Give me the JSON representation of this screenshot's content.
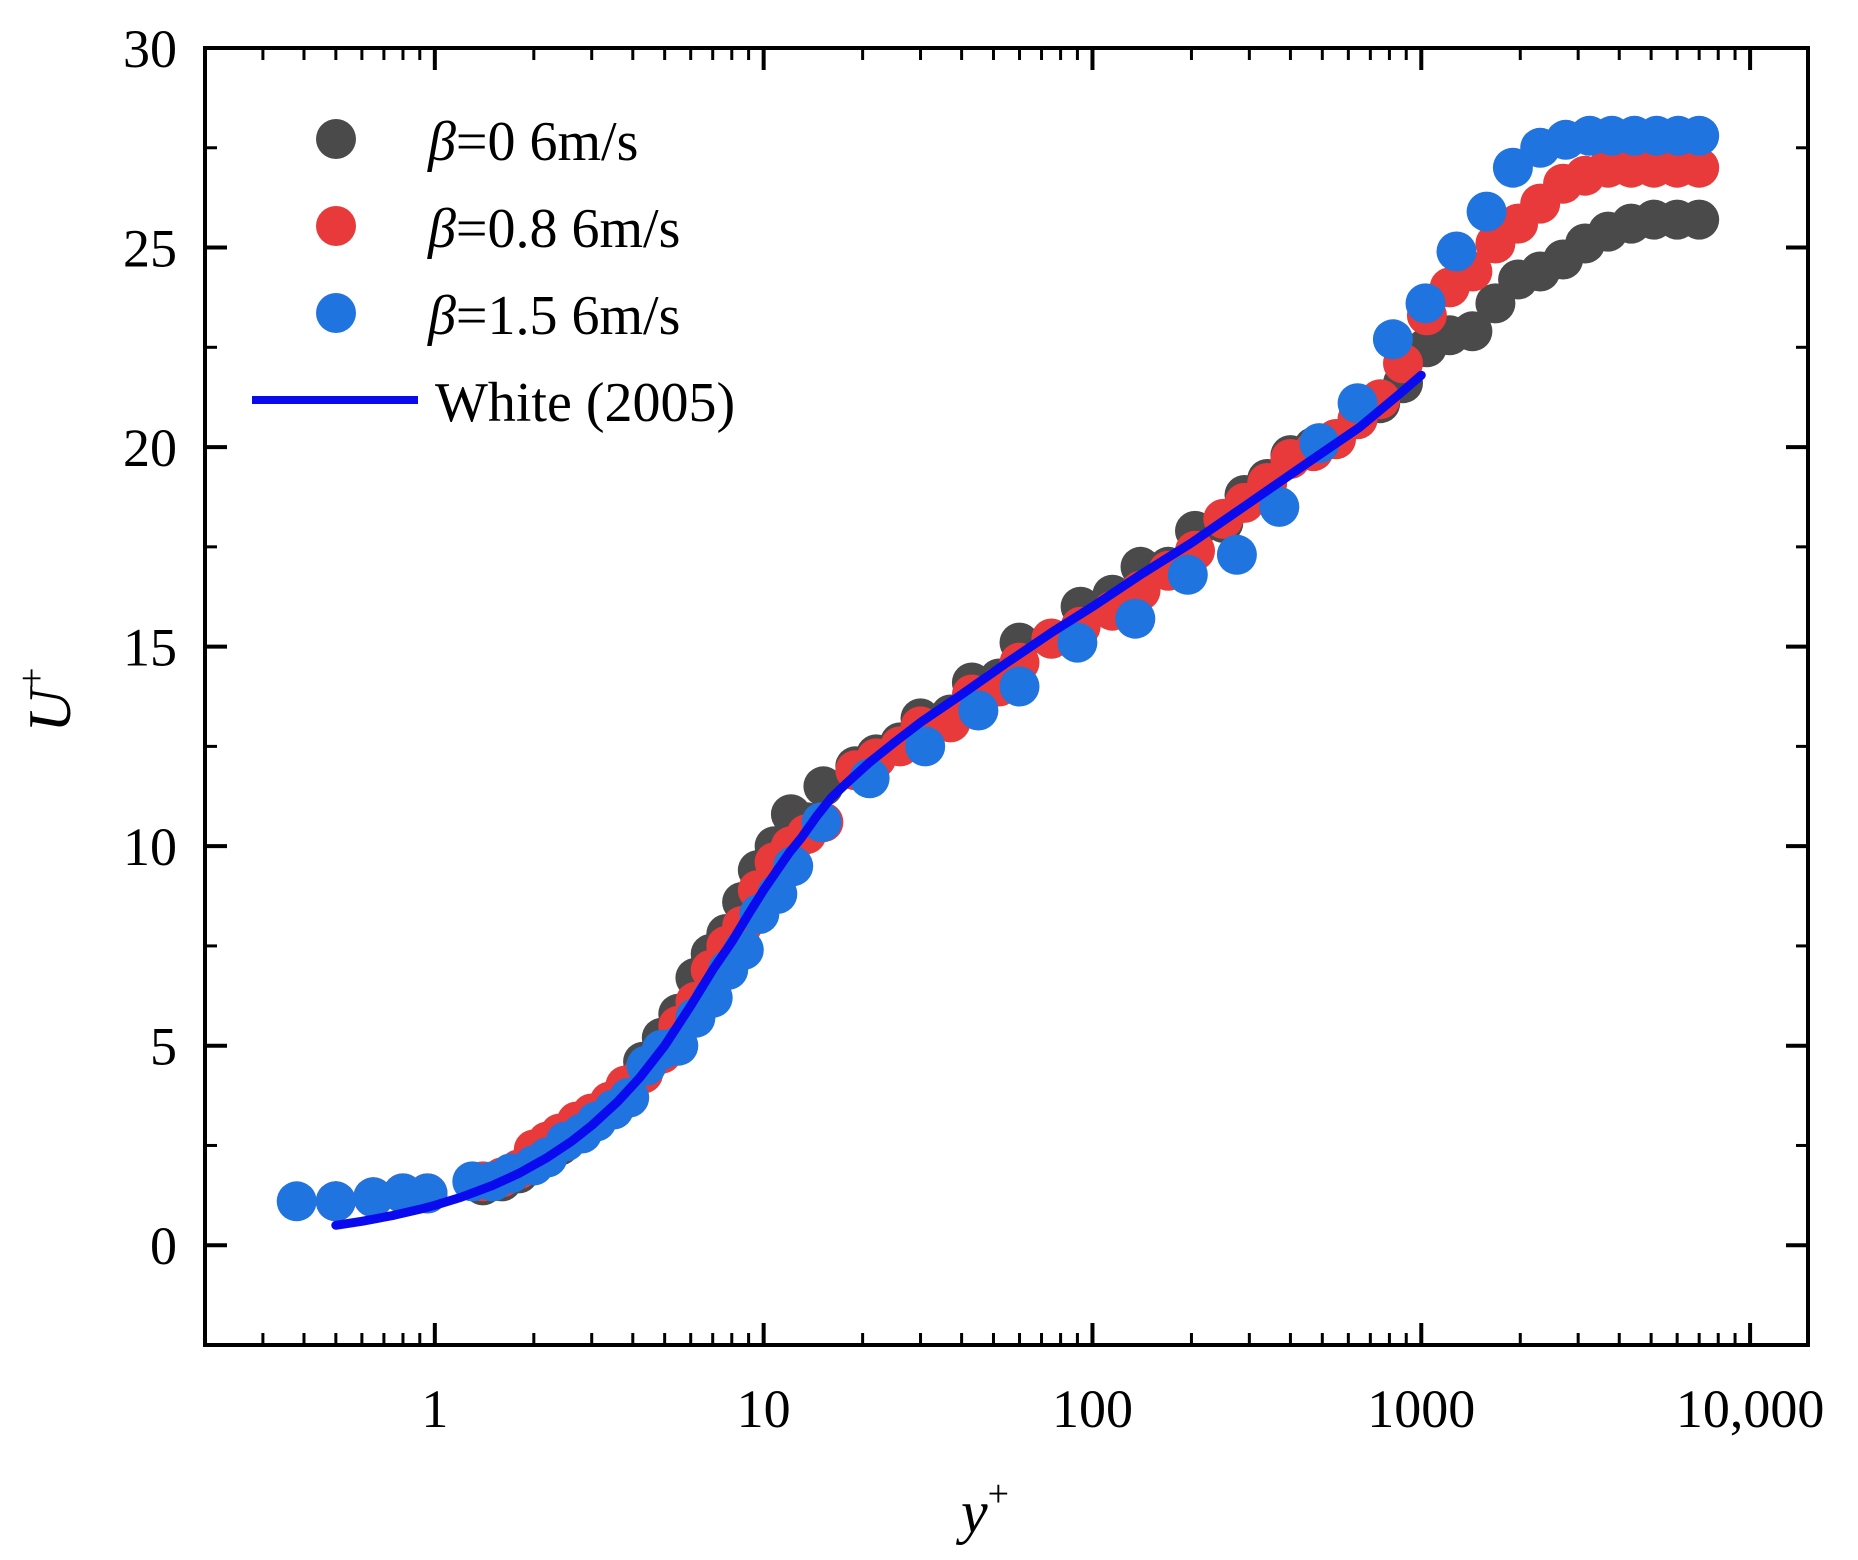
{
  "chart_data": {
    "type": "scatter",
    "xscale": "log",
    "xlim": [
      0.2,
      15000
    ],
    "ylim": [
      -2.5,
      30
    ],
    "xticks": [
      {
        "value": 1,
        "label": "1"
      },
      {
        "value": 10,
        "label": "10"
      },
      {
        "value": 100,
        "label": "100"
      },
      {
        "value": 1000,
        "label": "1000"
      },
      {
        "value": 10000,
        "label": "10,000"
      }
    ],
    "yticks": [
      {
        "value": 0,
        "label": "0"
      },
      {
        "value": 5,
        "label": "5"
      },
      {
        "value": 10,
        "label": "10"
      },
      {
        "value": 15,
        "label": "15"
      },
      {
        "value": 20,
        "label": "20"
      },
      {
        "value": 25,
        "label": "25"
      },
      {
        "value": 30,
        "label": "30"
      }
    ],
    "xlabel": "y",
    "xlabel_superscript": "+",
    "ylabel": "U",
    "ylabel_superscript": "+",
    "legend_position": "top-left",
    "series": [
      {
        "name": "β=0 6m/s",
        "symbol": "β",
        "label_rest": "=0 6m/s",
        "color": "#4a4a4a",
        "x": [
          0.5,
          0.65,
          0.8,
          0.95,
          1.4,
          1.6,
          1.8,
          2.0,
          2.2,
          2.4,
          2.7,
          3.0,
          3.4,
          3.8,
          4.3,
          4.9,
          5.5,
          6.2,
          6.9,
          7.7,
          8.6,
          9.6,
          10.8,
          12.1,
          13.5,
          15.2,
          19.0,
          22.0,
          26.0,
          30.0,
          37.0,
          43.0,
          52.0,
          60.0,
          75.0,
          92.0,
          115.0,
          140.0,
          170.0,
          205.0,
          250.0,
          290.0,
          340.0,
          400.0,
          470.0,
          550.0,
          640.0,
          750.0,
          880.0,
          1040.0,
          1220.0,
          1430.0,
          1680.0,
          1970.0,
          2300.0,
          2700.0,
          3150.0,
          3700.0,
          4350.0,
          5100.0,
          6000.0,
          7000.0
        ],
        "y": [
          1.1,
          1.2,
          1.3,
          1.3,
          1.5,
          1.6,
          1.8,
          2.0,
          2.2,
          2.5,
          2.8,
          3.1,
          3.5,
          4.0,
          4.6,
          5.2,
          5.8,
          6.7,
          7.3,
          7.8,
          8.6,
          9.4,
          10.0,
          10.8,
          10.6,
          11.5,
          12.0,
          12.3,
          12.6,
          13.2,
          13.3,
          14.1,
          14.2,
          15.1,
          15.2,
          16.0,
          16.3,
          17.0,
          17.0,
          17.9,
          18.1,
          18.8,
          19.2,
          19.8,
          20.0,
          20.2,
          20.7,
          21.1,
          21.6,
          22.5,
          22.8,
          22.9,
          23.6,
          24.2,
          24.4,
          24.7,
          25.1,
          25.4,
          25.6,
          25.7,
          25.7,
          25.7
        ]
      },
      {
        "name": "β=0.8 6m/s",
        "symbol": "β",
        "label_rest": "=0.8 6m/s",
        "color": "#e83a3a",
        "x": [
          0.5,
          0.65,
          0.8,
          0.95,
          1.4,
          1.6,
          1.8,
          2.0,
          2.2,
          2.4,
          2.7,
          3.0,
          3.4,
          3.8,
          4.3,
          4.9,
          5.5,
          6.2,
          6.9,
          7.7,
          8.6,
          9.6,
          10.8,
          12.1,
          13.5,
          15.2,
          19.0,
          22.0,
          26.0,
          30.0,
          37.0,
          43.0,
          52.0,
          60.0,
          75.0,
          92.0,
          115.0,
          140.0,
          170.0,
          205.0,
          250.0,
          290.0,
          340.0,
          400.0,
          470.0,
          550.0,
          640.0,
          750.0,
          880.0,
          1040.0,
          1220.0,
          1430.0,
          1680.0,
          1970.0,
          2300.0,
          2700.0,
          3150.0,
          3700.0,
          4350.0,
          5100.0,
          6000.0,
          7000.0
        ],
        "y": [
          1.1,
          1.2,
          1.3,
          1.3,
          1.6,
          1.7,
          1.9,
          2.4,
          2.6,
          2.8,
          3.1,
          3.3,
          3.6,
          4.0,
          4.3,
          4.8,
          5.5,
          6.1,
          6.9,
          7.5,
          8.0,
          8.9,
          9.6,
          10.0,
          10.3,
          10.6,
          11.9,
          12.2,
          12.5,
          13.0,
          13.1,
          13.8,
          14.0,
          14.6,
          15.2,
          15.5,
          15.9,
          16.4,
          16.9,
          17.4,
          18.2,
          18.6,
          19.1,
          19.7,
          19.9,
          20.2,
          20.7,
          21.2,
          22.1,
          23.3,
          24.0,
          24.4,
          25.1,
          25.6,
          26.1,
          26.6,
          26.8,
          27.0,
          27.0,
          27.0,
          27.0,
          27.0
        ]
      },
      {
        "name": "β=1.5 6m/s",
        "symbol": "β",
        "label_rest": "=1.5 6m/s",
        "color": "#1f74e0",
        "x": [
          0.38,
          0.5,
          0.65,
          0.8,
          0.95,
          1.3,
          1.5,
          1.7,
          2.0,
          2.2,
          2.5,
          2.8,
          3.1,
          3.5,
          3.9,
          4.4,
          4.9,
          5.5,
          6.2,
          7.0,
          7.8,
          8.7,
          9.7,
          11.0,
          12.3,
          15.0,
          21.0,
          31.0,
          45.0,
          60.0,
          90.0,
          135.0,
          195.0,
          275.0,
          370.0,
          490.0,
          640.0,
          820.0,
          1030.0,
          1280.0,
          1580.0,
          1900.0,
          2300.0,
          2750.0,
          3250.0,
          3800.0,
          4450.0,
          5200.0,
          6050.0,
          7000.0
        ],
        "y": [
          1.1,
          1.1,
          1.2,
          1.3,
          1.3,
          1.6,
          1.6,
          1.8,
          2.0,
          2.2,
          2.6,
          2.8,
          3.1,
          3.4,
          3.7,
          4.5,
          4.9,
          5.0,
          5.7,
          6.2,
          6.9,
          7.4,
          8.3,
          8.8,
          9.5,
          10.6,
          11.7,
          12.5,
          13.4,
          14.0,
          15.1,
          15.7,
          16.8,
          17.3,
          18.5,
          20.1,
          21.1,
          22.7,
          23.6,
          24.9,
          25.9,
          27.0,
          27.5,
          27.7,
          27.8,
          27.8,
          27.8,
          27.8,
          27.8,
          27.8
        ]
      },
      {
        "name": "White (2005)",
        "kind": "line",
        "color": "#0a0aee",
        "x": [
          0.5,
          0.6,
          0.75,
          0.9,
          1.0,
          1.2,
          1.5,
          1.8,
          2.2,
          2.6,
          3.0,
          3.6,
          4.2,
          5.0,
          6.0,
          7.0,
          8.0,
          9.0,
          10.0,
          11.0,
          12.0,
          13.0,
          14.5,
          16.0,
          18.0,
          21.0,
          25.0,
          30.0,
          40.0,
          55.0,
          75.0,
          100.0,
          140.0,
          200.0,
          300.0,
          450.0,
          650.0,
          850.0,
          1000.0
        ],
        "y": [
          0.5,
          0.6,
          0.75,
          0.9,
          1.0,
          1.2,
          1.5,
          1.8,
          2.2,
          2.6,
          3.0,
          3.6,
          4.2,
          5.0,
          6.0,
          6.9,
          7.6,
          8.3,
          8.9,
          9.4,
          9.85,
          10.2,
          10.75,
          11.2,
          11.6,
          12.1,
          12.6,
          13.1,
          13.8,
          14.6,
          15.35,
          16.0,
          16.8,
          17.6,
          18.6,
          19.6,
          20.5,
          21.3,
          21.8
        ]
      }
    ]
  }
}
